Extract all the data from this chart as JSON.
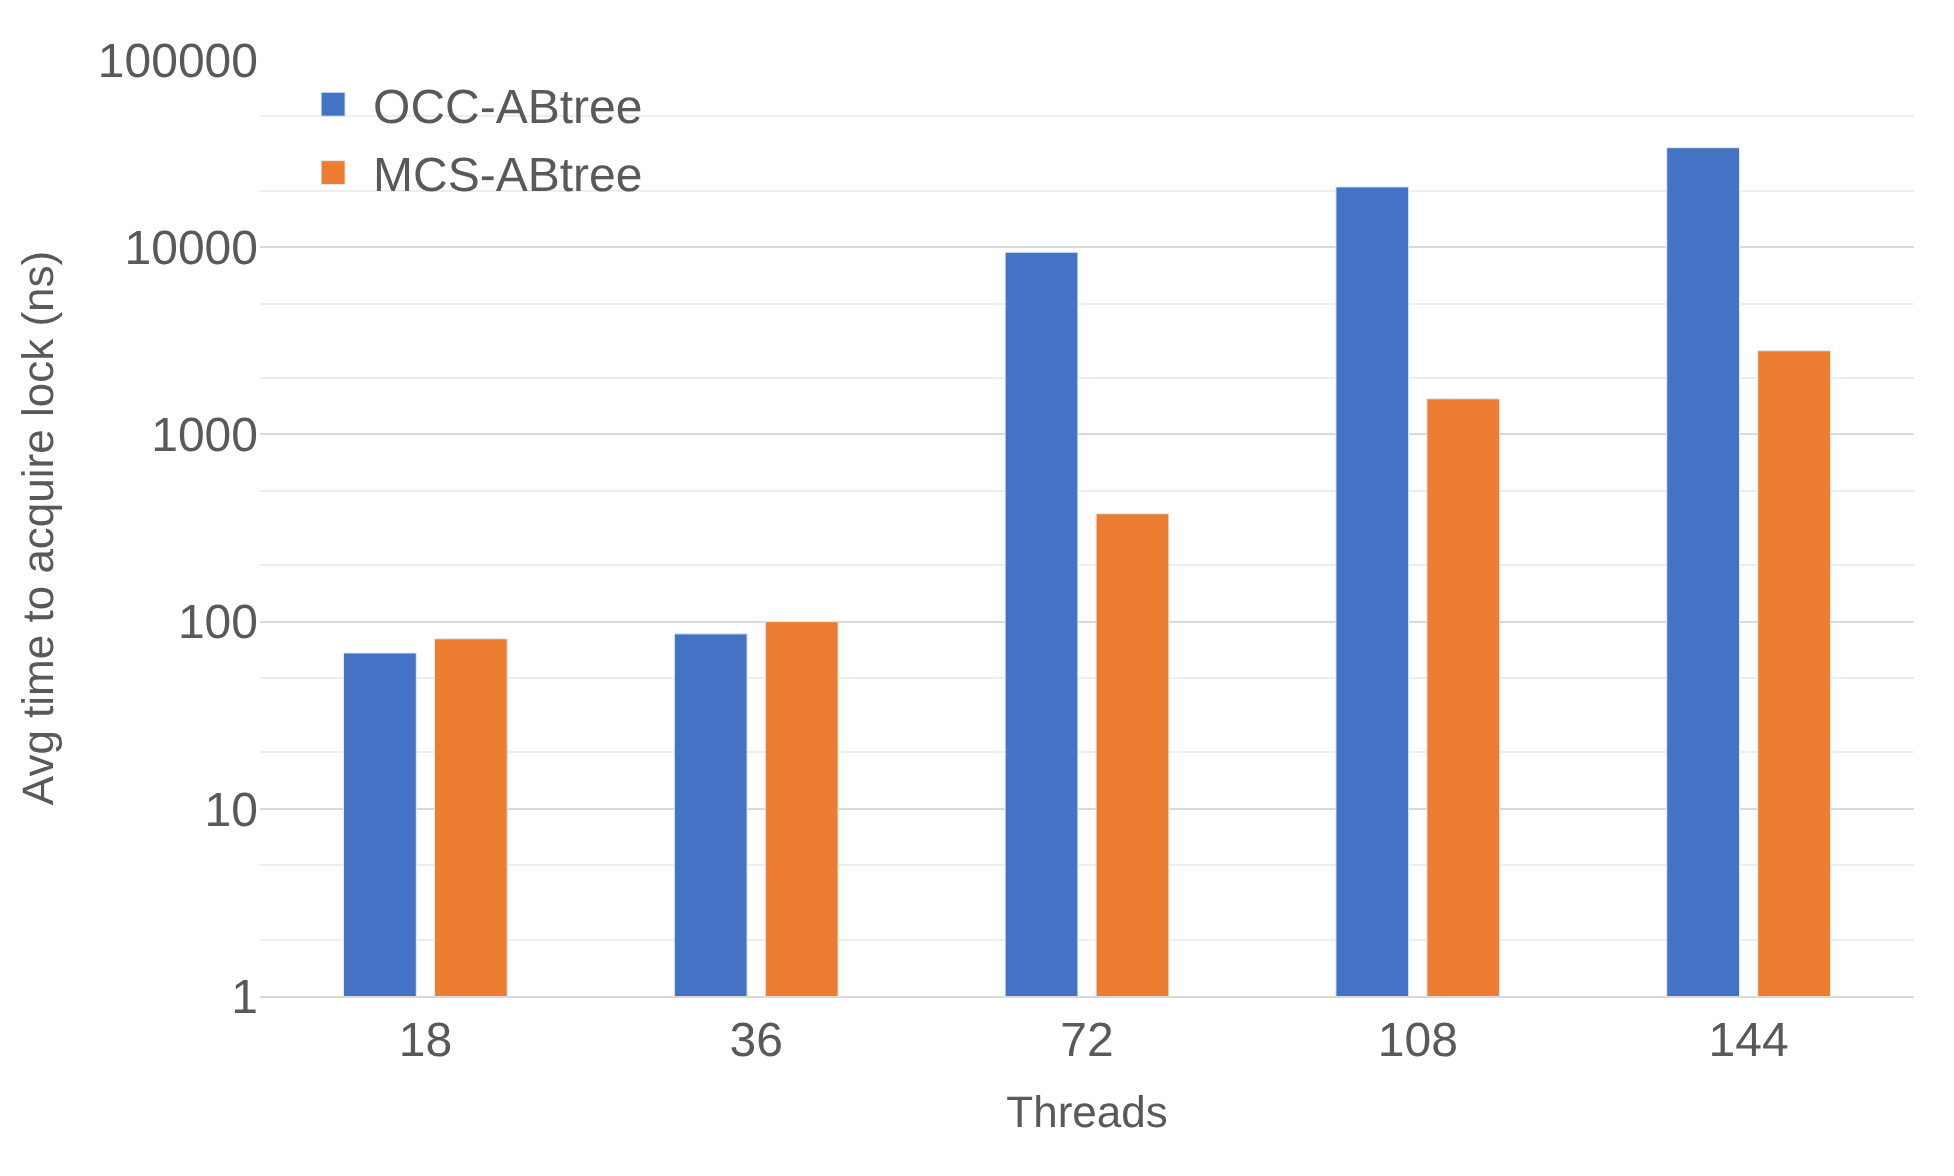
{
  "chart_data": {
    "type": "bar",
    "xlabel": "Threads",
    "ylabel": "Avg time to acquire lock (ns)",
    "categories": [
      "18",
      "36",
      "72",
      "108",
      "144"
    ],
    "series": [
      {
        "name": "OCC-ABtree",
        "color": "#4472c4",
        "values": [
          68,
          86,
          9400,
          21000,
          34000
        ]
      },
      {
        "name": "MCS-ABtree",
        "color": "#ed7d31",
        "values": [
          81,
          100,
          377,
          1550,
          2800
        ]
      }
    ],
    "log": "y",
    "ylim": [
      1,
      100000
    ],
    "yticks": [
      1,
      10,
      100,
      1000,
      10000,
      100000
    ],
    "grid": "y",
    "legend": "top left"
  }
}
